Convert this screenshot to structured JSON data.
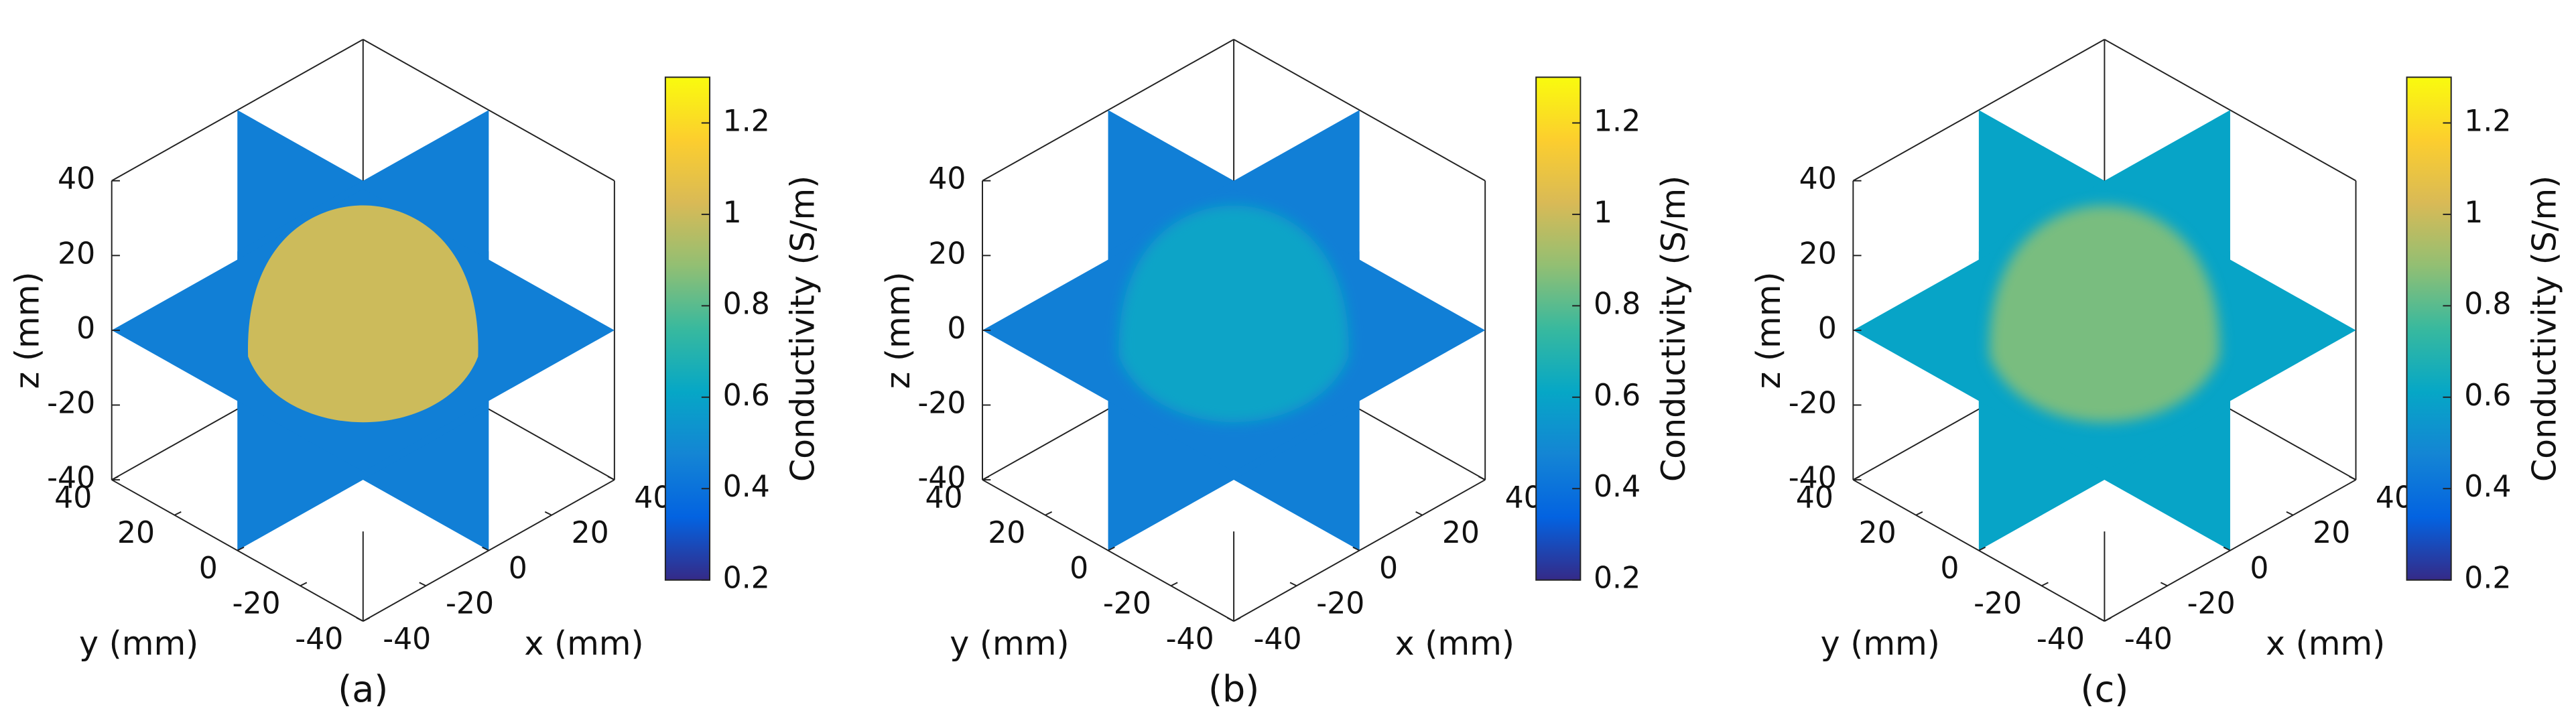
{
  "chart_data": [
    {
      "type": "slice3d",
      "panel_label": "(a)",
      "xlabel": "x (mm)",
      "ylabel": "y (mm)",
      "zlabel": "z (mm)",
      "xlim": [
        -40,
        40
      ],
      "ylim": [
        -40,
        40
      ],
      "zlim": [
        -40,
        40
      ],
      "xticks": [
        -40,
        -20,
        0,
        20,
        40
      ],
      "yticks": [
        -40,
        -20,
        0,
        20,
        40
      ],
      "zticks": [
        -40,
        -20,
        0,
        20,
        40
      ],
      "colormap": "parula",
      "colorbar_label": "Conductivity (S/m)",
      "clim": [
        0.2,
        1.3
      ],
      "cticks": [
        0.2,
        0.4,
        0.6,
        0.8,
        1,
        1.2
      ],
      "background": 0.45,
      "inclusion": 1.0
    },
    {
      "type": "slice3d",
      "panel_label": "(b)",
      "xlabel": "x (mm)",
      "ylabel": "y (mm)",
      "zlabel": "z (mm)",
      "xlim": [
        -40,
        40
      ],
      "ylim": [
        -40,
        40
      ],
      "zlim": [
        -40,
        40
      ],
      "xticks": [
        -40,
        -20,
        0,
        20,
        40
      ],
      "yticks": [
        -40,
        -20,
        0,
        20,
        40
      ],
      "zticks": [
        -40,
        -20,
        0,
        20,
        40
      ],
      "colormap": "parula",
      "colorbar_label": "Conductivity (S/m)",
      "clim": [
        0.2,
        1.3
      ],
      "cticks": [
        0.2,
        0.4,
        0.6,
        0.8,
        1,
        1.2
      ],
      "background": 0.45,
      "inclusion": 0.6
    },
    {
      "type": "slice3d",
      "panel_label": "(c)",
      "xlabel": "x (mm)",
      "ylabel": "y (mm)",
      "zlabel": "z (mm)",
      "xlim": [
        -40,
        40
      ],
      "ylim": [
        -40,
        40
      ],
      "zlim": [
        -40,
        40
      ],
      "xticks": [
        -40,
        -20,
        0,
        20,
        40
      ],
      "yticks": [
        -40,
        -20,
        0,
        20,
        40
      ],
      "zticks": [
        -40,
        -20,
        0,
        20,
        40
      ],
      "colormap": "parula",
      "colorbar_label": "Conductivity (S/m)",
      "clim": [
        0.2,
        1.3
      ],
      "cticks": [
        0.2,
        0.4,
        0.6,
        0.8,
        1,
        1.2
      ],
      "background": 0.6,
      "inclusion": 0.85
    }
  ]
}
